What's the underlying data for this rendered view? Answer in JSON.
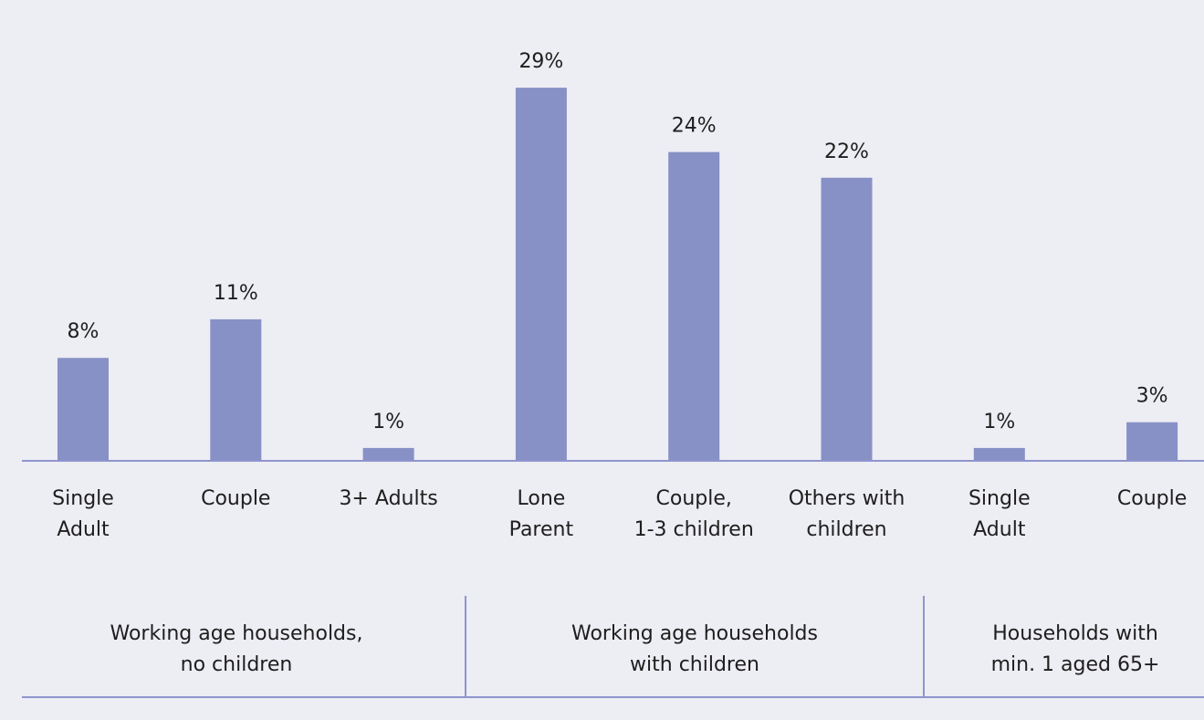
{
  "chart_data": {
    "type": "bar",
    "categories": [
      [
        "Single",
        "Adult"
      ],
      [
        "Couple"
      ],
      [
        "3+ Adults"
      ],
      [
        "Lone",
        "Parent"
      ],
      [
        "Couple,",
        "1-3 children"
      ],
      [
        "Others with",
        "children"
      ],
      [
        "Single",
        "Adult"
      ],
      [
        "Couple"
      ]
    ],
    "values": [
      8,
      11,
      1,
      29,
      24,
      22,
      1,
      3
    ],
    "value_labels": [
      "8%",
      "11%",
      "1%",
      "29%",
      "24%",
      "22%",
      "1%",
      "3%"
    ],
    "groups": [
      {
        "label": [
          "Working age households,",
          "no children"
        ],
        "categories": [
          0,
          1,
          2
        ]
      },
      {
        "label": [
          "Working age households",
          "with children"
        ],
        "categories": [
          3,
          4,
          5
        ]
      },
      {
        "label": [
          "Households with",
          "min. 1 aged 65+"
        ],
        "categories": [
          6,
          7
        ]
      }
    ],
    "unit": "%",
    "grid": false,
    "legend": "none",
    "colors": {
      "bar": "#8791c6",
      "axis": "#8e95cc",
      "background": "#ededf4",
      "text": "#1e1e1e"
    }
  }
}
